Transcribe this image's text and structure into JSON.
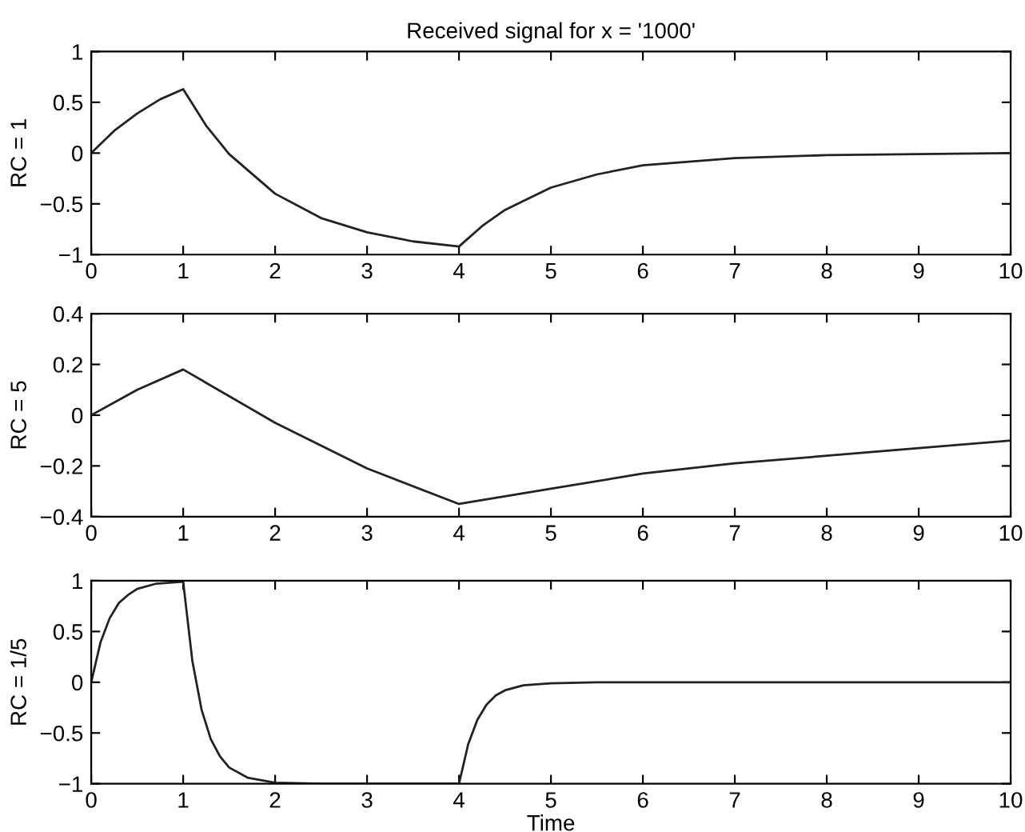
{
  "chart_data": [
    {
      "type": "line",
      "title": "Received signal for x = '1000'",
      "ylabel": "RC = 1",
      "xlim": [
        0,
        10
      ],
      "xticks": [
        0,
        1,
        2,
        3,
        4,
        5,
        6,
        7,
        8,
        9,
        10
      ],
      "ylim": [
        -1,
        1
      ],
      "yticks": [
        -1,
        -0.5,
        0,
        0.5,
        1
      ],
      "grid": false,
      "series": [
        {
          "color": "#222222",
          "x": [
            0,
            0.25,
            0.5,
            0.75,
            1,
            1.25,
            1.5,
            2,
            2.5,
            3,
            3.5,
            4,
            4.25,
            4.5,
            5,
            5.5,
            6,
            7,
            8,
            9,
            10
          ],
          "values": [
            0,
            0.22,
            0.39,
            0.53,
            0.63,
            0.27,
            -0.01,
            -0.4,
            -0.64,
            -0.78,
            -0.87,
            -0.92,
            -0.72,
            -0.56,
            -0.34,
            -0.21,
            -0.12,
            -0.05,
            -0.02,
            -0.01,
            0
          ]
        }
      ]
    },
    {
      "type": "line",
      "ylabel": "RC = 5",
      "xlim": [
        0,
        10
      ],
      "xticks": [
        0,
        1,
        2,
        3,
        4,
        5,
        6,
        7,
        8,
        9,
        10
      ],
      "ylim": [
        -0.4,
        0.4
      ],
      "yticks": [
        -0.4,
        -0.2,
        0,
        0.2,
        0.4
      ],
      "grid": false,
      "series": [
        {
          "color": "#222222",
          "x": [
            0,
            0.5,
            1,
            2,
            3,
            4,
            5,
            6,
            7,
            8,
            9,
            10
          ],
          "values": [
            0,
            0.1,
            0.18,
            -0.03,
            -0.21,
            -0.35,
            -0.29,
            -0.23,
            -0.19,
            -0.16,
            -0.13,
            -0.1
          ]
        }
      ]
    },
    {
      "type": "line",
      "ylabel": "RC = 1/5",
      "xlabel": "Time",
      "xlim": [
        0,
        10
      ],
      "xticks": [
        0,
        1,
        2,
        3,
        4,
        5,
        6,
        7,
        8,
        9,
        10
      ],
      "ylim": [
        -1,
        1
      ],
      "yticks": [
        -1,
        -0.5,
        0,
        0.5,
        1
      ],
      "grid": false,
      "series": [
        {
          "color": "#222222",
          "x": [
            0,
            0.1,
            0.2,
            0.3,
            0.4,
            0.5,
            0.7,
            1,
            1.1,
            1.2,
            1.3,
            1.4,
            1.5,
            1.7,
            2,
            2.5,
            4,
            4.1,
            4.2,
            4.3,
            4.4,
            4.5,
            4.7,
            5,
            5.5,
            10
          ],
          "values": [
            0,
            0.39,
            0.63,
            0.78,
            0.86,
            0.92,
            0.97,
            0.99,
            0.21,
            -0.27,
            -0.56,
            -0.73,
            -0.84,
            -0.94,
            -0.99,
            -1,
            -1,
            -0.61,
            -0.37,
            -0.22,
            -0.13,
            -0.08,
            -0.03,
            -0.01,
            0,
            0
          ]
        }
      ]
    }
  ]
}
